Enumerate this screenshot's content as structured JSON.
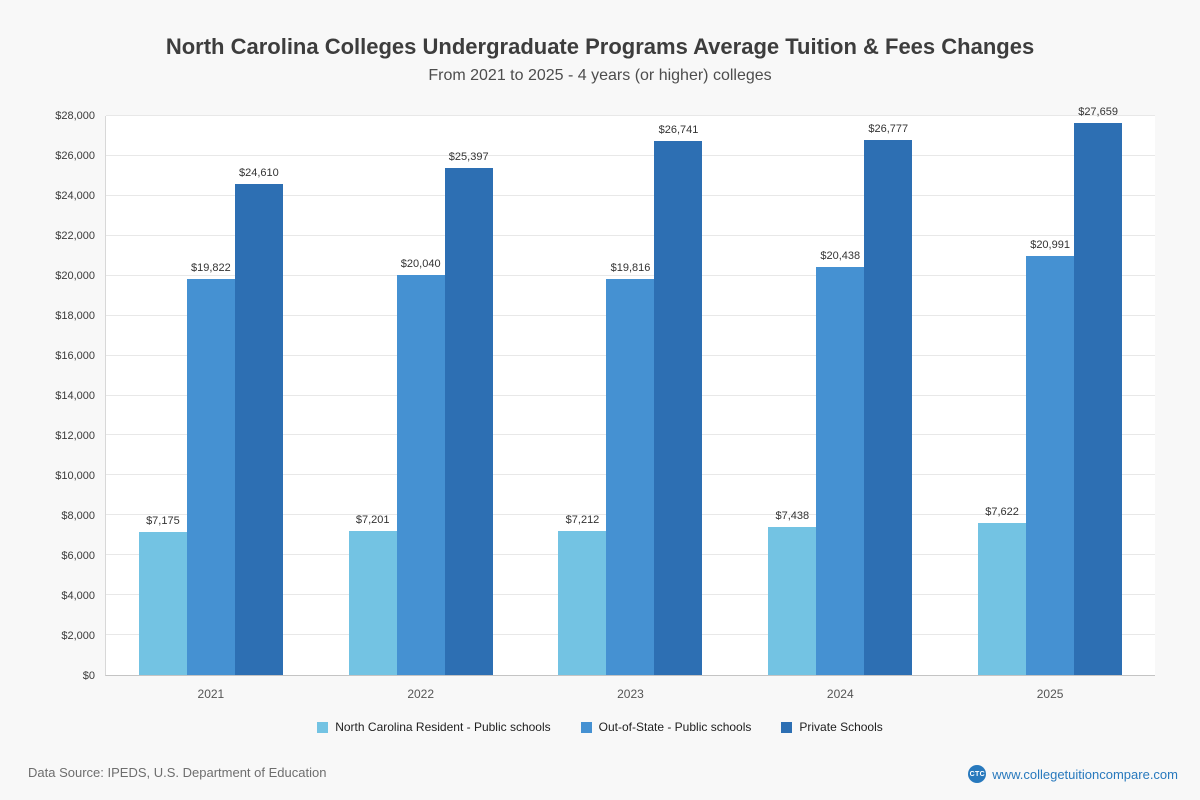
{
  "chart": {
    "title": "North Carolina Colleges Undergraduate Programs Average Tuition & Fees Changes",
    "subtitle": "From 2021 to 2025 - 4 years (or higher) colleges"
  },
  "chart_data": {
    "type": "bar",
    "categories": [
      "2021",
      "2022",
      "2023",
      "2024",
      "2025"
    ],
    "series": [
      {
        "name": "North Carolina Resident - Public schools",
        "color": "#73c3e3",
        "values": [
          7175,
          7201,
          7212,
          7438,
          7622
        ]
      },
      {
        "name": "Out-of-State - Public schools",
        "color": "#4591d2",
        "values": [
          19822,
          20040,
          19816,
          20438,
          20991
        ]
      },
      {
        "name": "Private Schools",
        "color": "#2d6fb3",
        "values": [
          24610,
          25397,
          26741,
          26777,
          27659
        ]
      }
    ],
    "ylim": [
      0,
      28000
    ],
    "ytick_step": 2000,
    "grid": true,
    "legend_position": "bottom",
    "value_label_format": "$#,###",
    "ytick_labels": [
      "$0",
      "$2,000",
      "$4,000",
      "$6,000",
      "$8,000",
      "$10,000",
      "$12,000",
      "$14,000",
      "$16,000",
      "$18,000",
      "$20,000",
      "$22,000",
      "$24,000",
      "$26,000",
      "$28,000"
    ]
  },
  "footer": {
    "source": "Data Source: IPEDS, U.S. Department of Education",
    "site_label": "www.collegetuitioncompare.com",
    "logo_text": "CTC",
    "link_color": "#2879bd"
  }
}
